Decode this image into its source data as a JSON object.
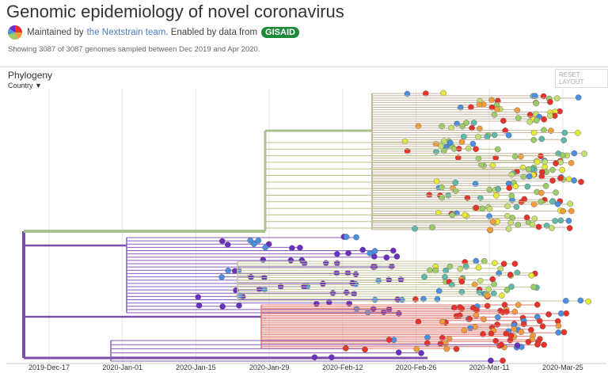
{
  "header": {
    "title": "Genomic epidemiology of novel coronavirus",
    "maintained_prefix": "Maintained by",
    "team_link": "the Nextstrain team",
    "enabled_text": ". Enabled by data from",
    "gisaid": "GISAID",
    "summary": "Showing 3087 of 3087 genomes sampled between Dec 2019 and Apr 2020."
  },
  "panel": {
    "title": "Phylogeny",
    "color_by": "Country",
    "reset": "RESET LAYOUT",
    "x_axis_labels": [
      "2019-Dec-17",
      "2020-Jan-01",
      "2020-Jan-15",
      "2020-Jan-29",
      "2020-Feb-12",
      "2020-Feb-26",
      "2020-Mar-11",
      "2020-Mar-25"
    ]
  }
}
